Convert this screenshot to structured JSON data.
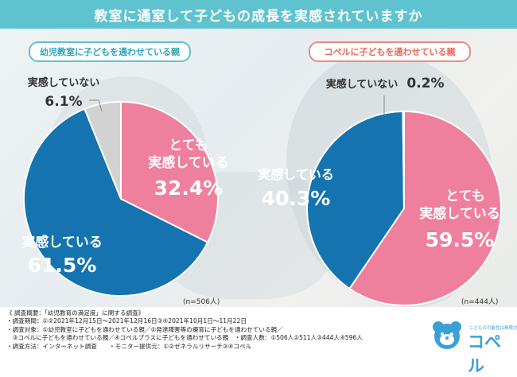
{
  "header": {
    "title": "教室に通室して子どもの成長を実感されていますか"
  },
  "panels": {
    "left_title": "幼児教室に子どもを通わせている親",
    "right_title": "コペルに子どもを通わせている親",
    "left_n": "(n=506人)",
    "right_n": "(n=444人)"
  },
  "chart_data": [
    {
      "type": "pie",
      "title": "幼児教室に子どもを通わせている親",
      "n": "(n=506人)",
      "categories": [
        "とても実感している",
        "実感している",
        "実感していない"
      ],
      "values": [
        32.4,
        61.5,
        6.1
      ],
      "colors": [
        "#ee7f9d",
        "#1574b0",
        "#d2d2d2"
      ],
      "labels": {
        "very_line1": "とても",
        "very_line2": "実感している",
        "very_value": "32.4%",
        "feel": "実感している",
        "feel_value": "61.5%",
        "not": "実感していない",
        "not_value": "6.1%"
      }
    },
    {
      "type": "pie",
      "title": "コペルに子どもを通わせている親",
      "n": "(n=444人)",
      "categories": [
        "とても実感している",
        "実感している",
        "実感していない"
      ],
      "values": [
        59.5,
        40.3,
        0.2
      ],
      "colors": [
        "#ee7f9d",
        "#1574b0",
        "#d2d2d2"
      ],
      "labels": {
        "very_line1": "とても",
        "very_line2": "実感している",
        "very_value": "59.5%",
        "feel": "実感している",
        "feel_value": "40.3%",
        "not": "実感していない",
        "not_value": "0.2%"
      }
    }
  ],
  "notes": {
    "line1": "《 調査概要：「幼児教育の満足度」に関する調査》",
    "line2": "・調査期間：①②2021年12月15日～2021年12月16日③④2021年10月1日～11月22日",
    "line3": "・調査対象：①幼児教室に子どもを通わせている親／②発達障害等の療育に子どもを通わせている親／",
    "line4": "　③コペルに子どもを通わせている親／④コペルプラスに子どもを通わせている親　・調査人数：①506人②511人③444人④596人",
    "line5": "・調査方法：インターネット調査　　・モニター提供元：①②ゼネラルリサーチ③④コペル"
  },
  "logo": {
    "tagline": "こどもの可能性は無限大",
    "name": "コペル"
  }
}
